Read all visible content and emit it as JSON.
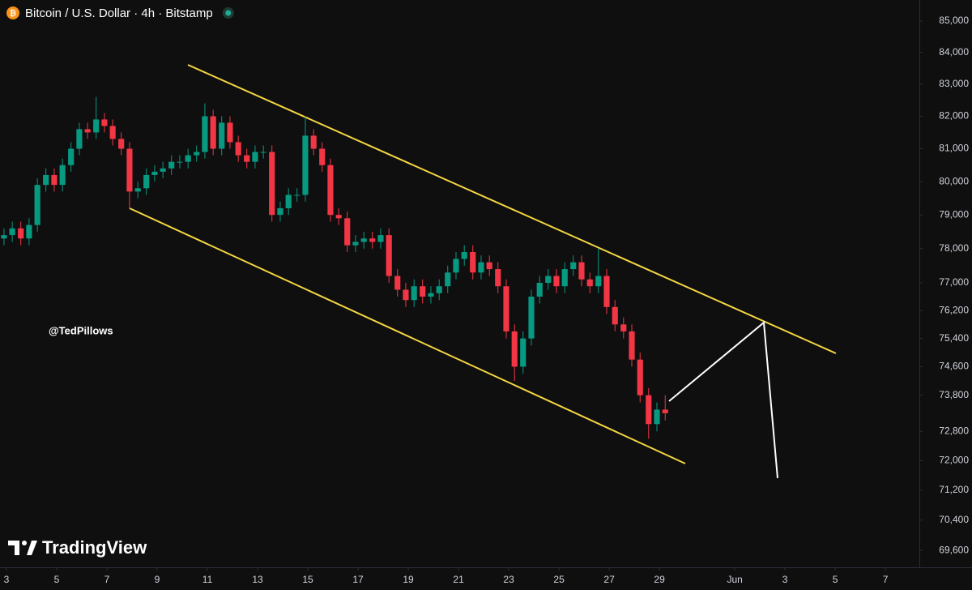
{
  "chart_data": {
    "type": "candlestick",
    "title": "Bitcoin / U.S. Dollar · 4h · Bitstamp",
    "watermark": "@TedPillows",
    "brand": "TradingView",
    "log": true,
    "up_color": "#089981",
    "down_color": "#f23645",
    "xlim": [
      2.742,
      39.35
    ],
    "ylim": [
      69157,
      85679
    ],
    "xticks": [
      3,
      5,
      7,
      9,
      11,
      13,
      15,
      17,
      19,
      21,
      23,
      25,
      27,
      29,
      {
        "value": 32,
        "label": "Jun"
      },
      {
        "value": 34,
        "label": "3"
      },
      {
        "value": 36,
        "label": "5"
      },
      {
        "value": 38,
        "label": "7"
      }
    ],
    "yticks": [
      {
        "value": 85000,
        "label": "85,000"
      },
      {
        "value": 84000,
        "label": "84,000"
      },
      {
        "value": 83000,
        "label": "83,000"
      },
      {
        "value": 82000,
        "label": "82,000"
      },
      {
        "value": 81000,
        "label": "81,000"
      },
      {
        "value": 80000,
        "label": "80,000"
      },
      {
        "value": 79000,
        "label": "79,000"
      },
      {
        "value": 78000,
        "label": "78,000"
      },
      {
        "value": 77000,
        "label": "77,000"
      },
      {
        "value": 76200,
        "label": "76,200"
      },
      {
        "value": 75400,
        "label": "75,400"
      },
      {
        "value": 74600,
        "label": "74,600"
      },
      {
        "value": 73800,
        "label": "73,800"
      },
      {
        "value": 72800,
        "label": "72,800"
      },
      {
        "value": 72000,
        "label": "72,000"
      },
      {
        "value": 71200,
        "label": "71,200"
      },
      {
        "value": 70400,
        "label": "70,400"
      },
      {
        "value": 69600,
        "label": "69,600"
      }
    ],
    "x": [
      2.9,
      3.23,
      3.57,
      3.9,
      4.23,
      4.57,
      4.9,
      5.23,
      5.57,
      5.9,
      6.23,
      6.57,
      6.9,
      7.23,
      7.57,
      7.9,
      8.23,
      8.57,
      8.9,
      9.23,
      9.57,
      9.9,
      10.23,
      10.57,
      10.9,
      11.23,
      11.57,
      11.9,
      12.23,
      12.57,
      12.9,
      13.23,
      13.57,
      13.9,
      14.23,
      14.57,
      14.9,
      15.23,
      15.57,
      15.9,
      16.23,
      16.57,
      16.9,
      17.23,
      17.57,
      17.9,
      18.23,
      18.57,
      18.9,
      19.23,
      19.57,
      19.9,
      20.23,
      20.57,
      20.9,
      21.23,
      21.57,
      21.9,
      22.23,
      22.57,
      22.9,
      23.23,
      23.57,
      23.9,
      24.23,
      24.57,
      24.9,
      25.23,
      25.57,
      25.9,
      26.23,
      26.57,
      26.9,
      27.23,
      27.57,
      27.9,
      28.23,
      28.57,
      28.9,
      29.23
    ],
    "open": [
      78300,
      78400,
      78600,
      78300,
      78700,
      79900,
      80200,
      79900,
      80500,
      81000,
      81600,
      81500,
      81900,
      81700,
      81300,
      81000,
      79700,
      79800,
      80200,
      80300,
      80400,
      80600,
      80600,
      80800,
      80900,
      82000,
      81000,
      81800,
      81200,
      80800,
      80600,
      80900,
      80900,
      79000,
      79200,
      79600,
      79600,
      81400,
      81000,
      80500,
      79000,
      78900,
      78100,
      78200,
      78300,
      78200,
      78400,
      77200,
      76800,
      76500,
      76900,
      76600,
      76700,
      76900,
      77300,
      77700,
      77900,
      77300,
      77600,
      77400,
      76900,
      75600,
      74600,
      75400,
      76600,
      77000,
      77200,
      76900,
      77400,
      77600,
      77100,
      76900,
      77200,
      76300,
      75800,
      75600,
      74800,
      73800,
      73000,
      73400
    ],
    "high": [
      78600,
      78800,
      78800,
      78900,
      80100,
      80400,
      80400,
      80700,
      81200,
      81800,
      81800,
      82600,
      82100,
      81900,
      81500,
      81200,
      80000,
      80400,
      80500,
      80600,
      80800,
      80800,
      81000,
      81100,
      82400,
      82200,
      82000,
      82000,
      81400,
      81000,
      81100,
      81100,
      81100,
      79400,
      79800,
      79800,
      82000,
      81600,
      81200,
      80700,
      79200,
      79100,
      78400,
      78500,
      78500,
      78600,
      78600,
      77400,
      77000,
      77100,
      77100,
      76900,
      77100,
      77500,
      77900,
      78100,
      78100,
      77800,
      77800,
      77600,
      77100,
      75800,
      75600,
      76800,
      77200,
      77400,
      77400,
      77600,
      77800,
      77800,
      77300,
      78000,
      77400,
      76500,
      76000,
      75800,
      75000,
      74000,
      73600,
      73800
    ],
    "low": [
      78100,
      78200,
      78100,
      78100,
      78500,
      79700,
      79700,
      79700,
      80300,
      80800,
      81300,
      81300,
      81500,
      81100,
      80800,
      79200,
      79500,
      79600,
      80000,
      80100,
      80200,
      80400,
      80400,
      80600,
      80700,
      80800,
      80800,
      81000,
      80600,
      80400,
      80400,
      80700,
      78800,
      78800,
      79000,
      79400,
      79400,
      80800,
      80300,
      78800,
      78700,
      77900,
      77900,
      78000,
      78000,
      78000,
      77000,
      76600,
      76300,
      76300,
      76400,
      76400,
      76500,
      76700,
      77100,
      77500,
      77100,
      77100,
      77200,
      76700,
      75400,
      74200,
      74400,
      75200,
      76400,
      76800,
      76700,
      76700,
      77200,
      76900,
      76700,
      76700,
      76100,
      75600,
      75400,
      74600,
      73600,
      72600,
      72800,
      73100
    ],
    "close": [
      78400,
      78600,
      78300,
      78700,
      79900,
      80200,
      79900,
      80500,
      81000,
      81600,
      81500,
      81900,
      81700,
      81300,
      81000,
      79700,
      79800,
      80200,
      80300,
      80400,
      80600,
      80600,
      80800,
      80900,
      82000,
      81000,
      81800,
      81200,
      80800,
      80600,
      80900,
      80900,
      79000,
      79200,
      79600,
      79600,
      81400,
      81000,
      80500,
      79000,
      78900,
      78100,
      78200,
      78300,
      78200,
      78400,
      77200,
      76800,
      76500,
      76900,
      76600,
      76700,
      76900,
      77300,
      77700,
      77900,
      77300,
      77600,
      77400,
      76900,
      75600,
      74600,
      75400,
      76600,
      77000,
      77200,
      76900,
      77400,
      77600,
      77100,
      76900,
      77200,
      76300,
      75800,
      75600,
      74800,
      73800,
      73000,
      73400,
      73300
    ]
  }
}
